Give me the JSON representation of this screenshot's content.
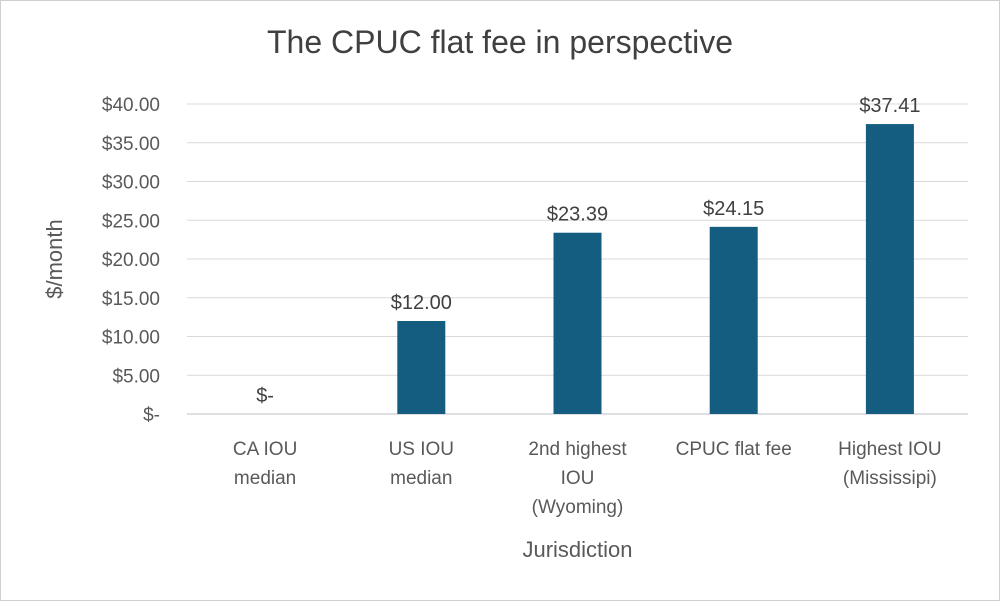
{
  "chart_data": {
    "type": "bar",
    "title": "The CPUC flat fee in perspective",
    "xlabel": "Jurisdiction",
    "ylabel": "$/month",
    "ylim": [
      0,
      40
    ],
    "yticks": [
      0,
      5,
      10,
      15,
      20,
      25,
      30,
      35,
      40
    ],
    "ytick_labels": [
      "$-",
      "$5.00",
      "$10.00",
      "$15.00",
      "$20.00",
      "$25.00",
      "$30.00",
      "$35.00",
      "$40.00"
    ],
    "grid": true,
    "legend": "none",
    "bar_color": "#145C80",
    "categories": [
      [
        "CA IOU",
        "median"
      ],
      [
        "US IOU",
        "median"
      ],
      [
        "2nd highest",
        "IOU",
        "(Wyoming)"
      ],
      [
        "CPUC flat fee"
      ],
      [
        "Highest IOU",
        "(Mississipi)"
      ]
    ],
    "values": [
      0,
      12.0,
      23.39,
      24.15,
      37.41
    ],
    "data_labels": [
      "$-",
      "$12.00",
      "$23.39",
      "$24.15",
      "$37.41"
    ]
  }
}
